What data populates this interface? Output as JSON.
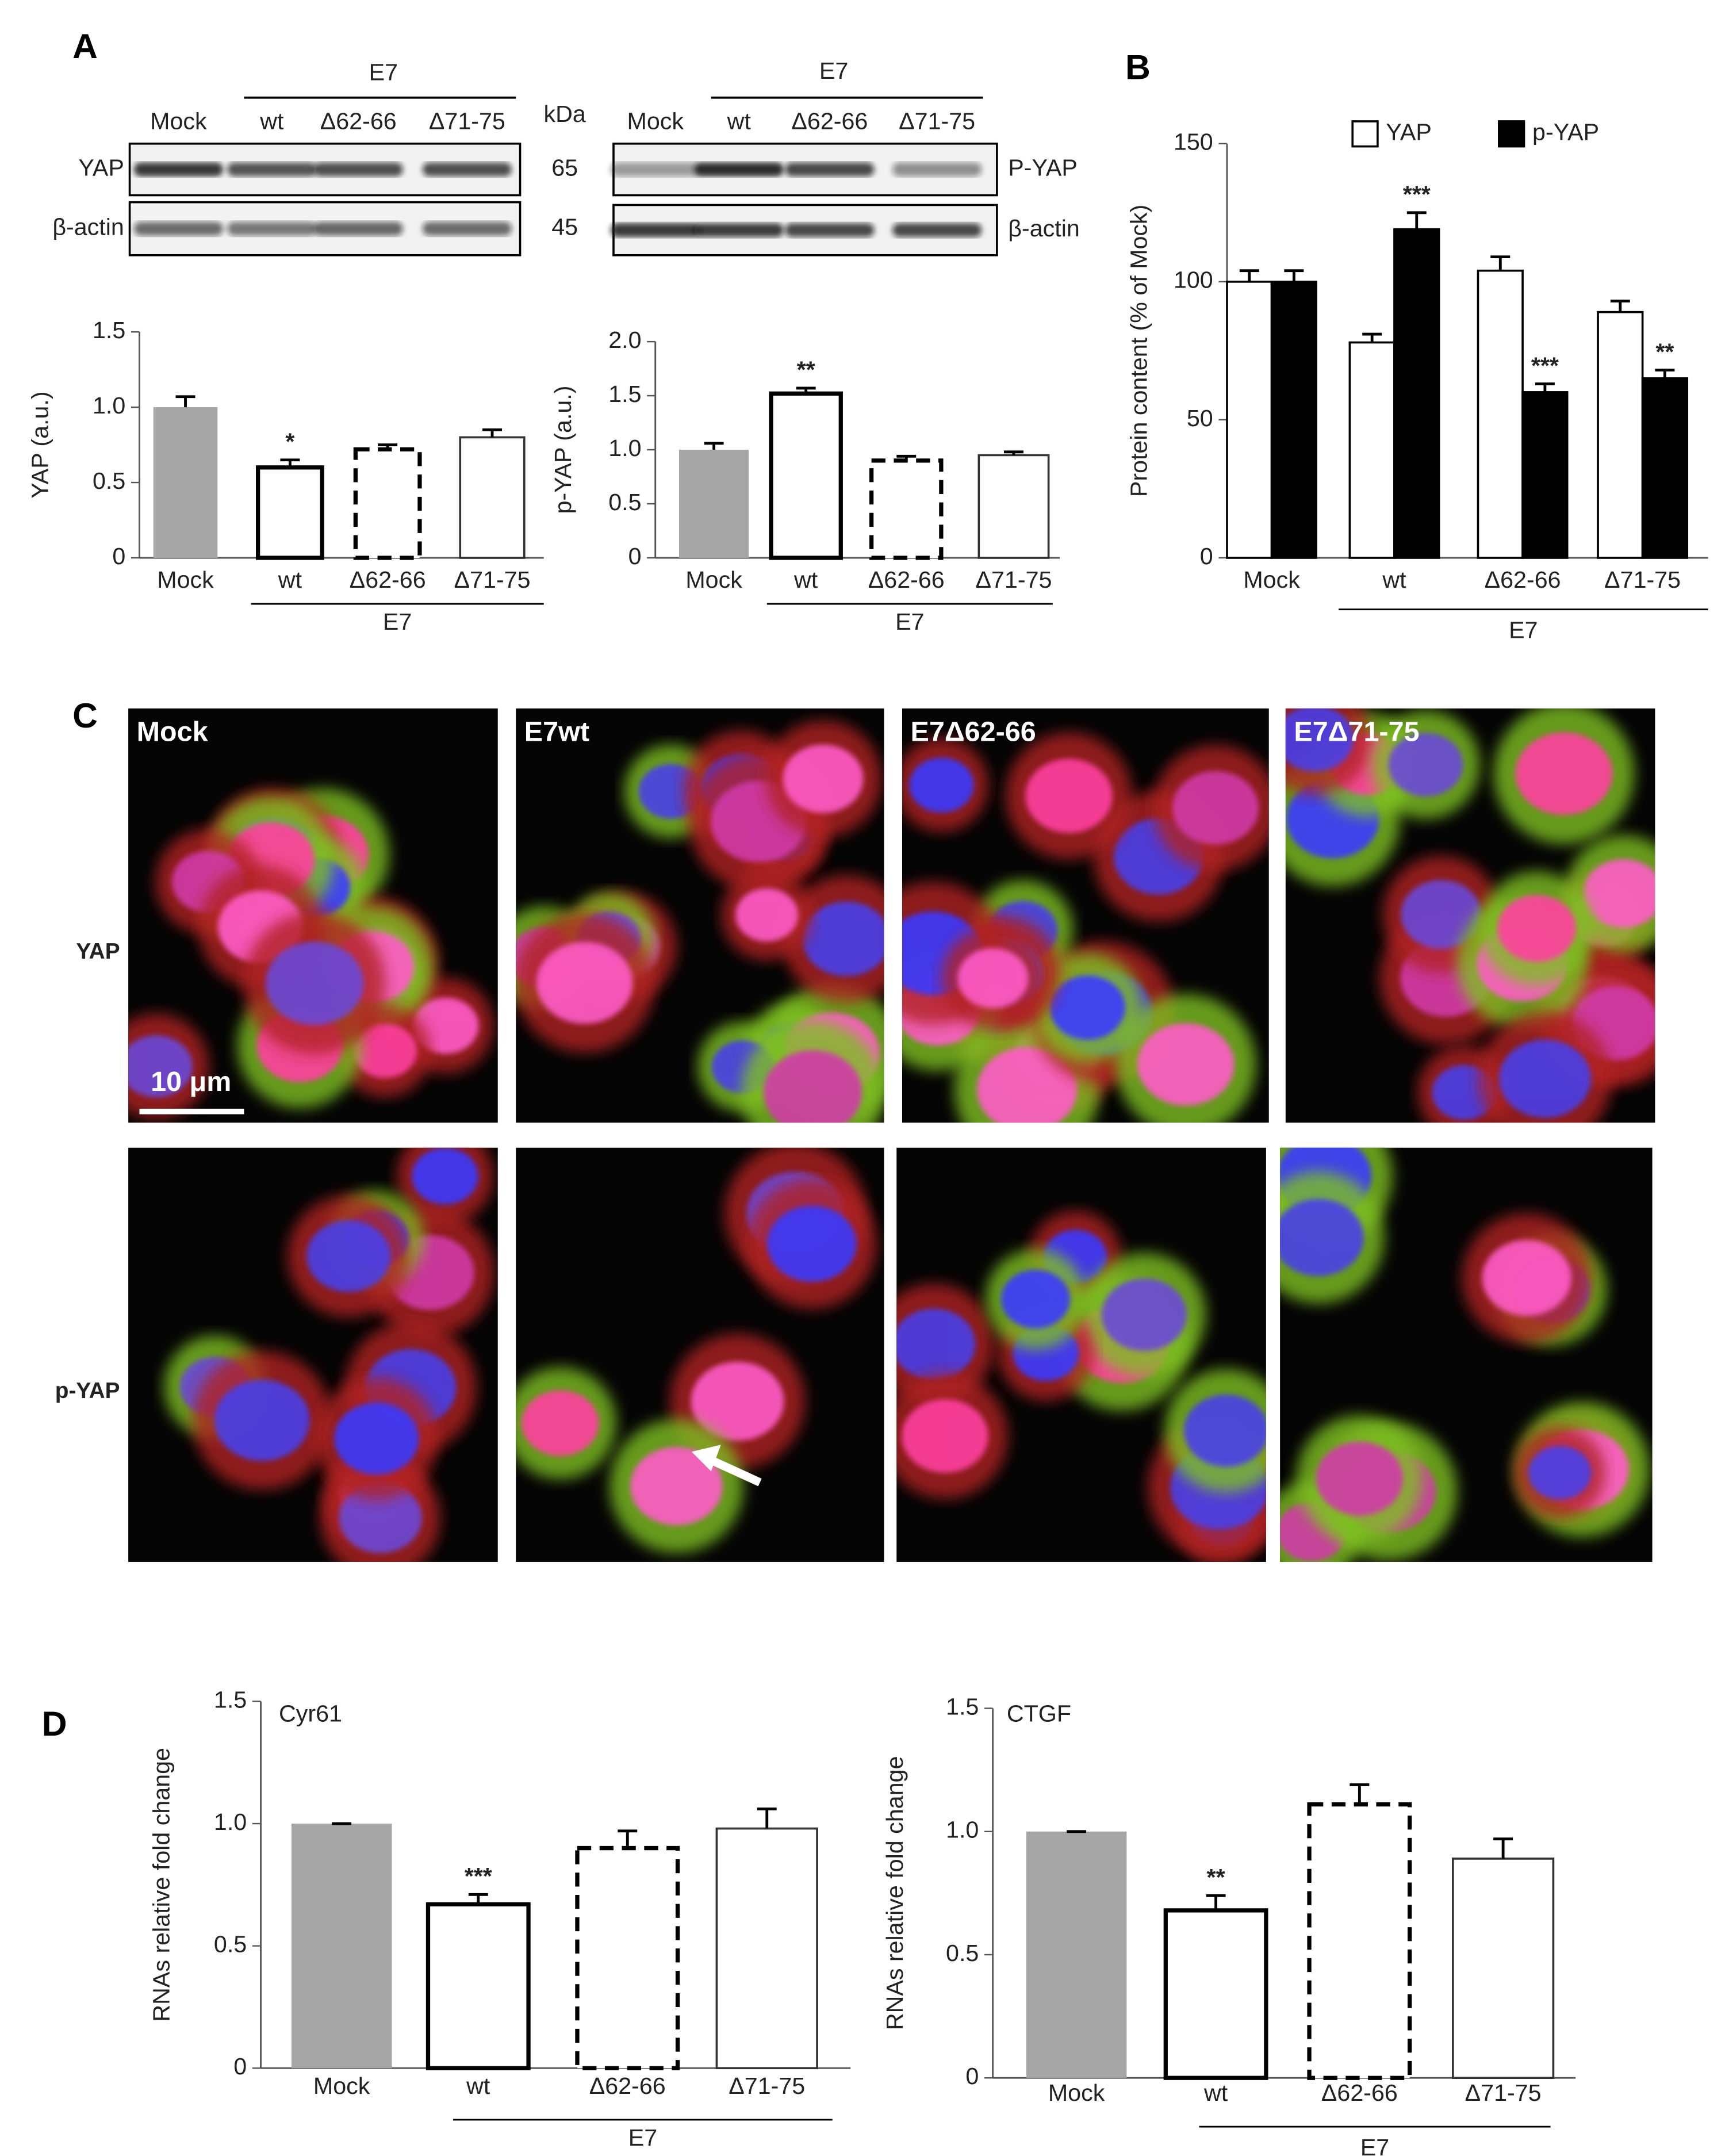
{
  "panel_labels": [
    "A",
    "B",
    "C",
    "D"
  ],
  "blots": [
    {
      "group": "E7",
      "lanes": [
        "Mock",
        "wt",
        "Δ62-66",
        "Δ71-75"
      ],
      "kda_header": "kDa",
      "rows": [
        {
          "label": "YAP",
          "kda": "65"
        },
        {
          "label": "β-actin",
          "kda": "45"
        }
      ]
    },
    {
      "group": "E7",
      "lanes": [
        "Mock",
        "wt",
        "Δ62-66",
        "Δ71-75"
      ],
      "rows": [
        {
          "label": "P-YAP"
        },
        {
          "label": "β-actin"
        }
      ]
    }
  ],
  "microscopy": {
    "columns": [
      "Mock",
      "E7wt",
      "E7Δ62-66",
      "E7Δ71-75"
    ],
    "rows": [
      "YAP",
      "p-YAP"
    ],
    "scale_bar": "10 μm"
  },
  "chart_data": [
    {
      "type": "bar",
      "y_label": "YAP (a.u.)",
      "categories": [
        "Mock",
        "wt",
        "Δ62-66",
        "Δ71-75"
      ],
      "values": [
        1.0,
        0.6,
        0.72,
        0.8
      ],
      "errors": [
        0.07,
        0.05,
        0.03,
        0.05
      ],
      "bar_styles": [
        "gray",
        "bold",
        "dashed",
        "thin"
      ],
      "significance": [
        null,
        "*",
        null,
        null
      ],
      "group_label": "E7",
      "ylim": [
        0,
        1.5
      ],
      "yticks": [
        0,
        0.5,
        {
          "value": 1,
          "label": "1.0"
        },
        1.5
      ]
    },
    {
      "type": "bar",
      "y_label": "p-YAP (a.u.)",
      "categories": [
        "Mock",
        "wt",
        "Δ62-66",
        "Δ71-75"
      ],
      "values": [
        1.0,
        1.52,
        0.9,
        0.95
      ],
      "errors": [
        0.06,
        0.05,
        0.04,
        0.03
      ],
      "bar_styles": [
        "gray",
        "bold",
        "dashed",
        "thin"
      ],
      "significance": [
        null,
        "**",
        null,
        null
      ],
      "group_label": "E7",
      "ylim": [
        0,
        2
      ],
      "yticks": [
        0,
        0.5,
        {
          "value": 1,
          "label": "1.0"
        },
        1.5,
        {
          "value": 2,
          "label": "2.0"
        }
      ]
    },
    {
      "type": "grouped_bar",
      "y_label": "Protein content (% of Mock)",
      "categories": [
        "Mock",
        "wt",
        "Δ62-66",
        "Δ71-75"
      ],
      "series": [
        {
          "name": "YAP",
          "color": "#ffffff",
          "values": [
            100,
            78,
            104,
            89
          ],
          "errors": [
            4,
            3,
            5,
            4
          ],
          "significance": [
            null,
            null,
            null,
            null
          ]
        },
        {
          "name": "p-YAP",
          "color": "#000000",
          "values": [
            100,
            119,
            60,
            65
          ],
          "errors": [
            4,
            6,
            3,
            3
          ],
          "significance": [
            null,
            "***",
            "***",
            "**"
          ]
        }
      ],
      "legend": "top",
      "group_label": "E7",
      "ylim": [
        0,
        150
      ],
      "yticks": [
        0,
        50,
        100,
        150
      ]
    },
    {
      "type": "bar",
      "title": "Cyr61",
      "y_label": "RNAs relative fold change",
      "categories": [
        "Mock",
        "wt",
        "Δ62-66",
        "Δ71-75"
      ],
      "values": [
        1.0,
        0.67,
        0.9,
        0.98
      ],
      "errors": [
        0,
        0.04,
        0.07,
        0.08
      ],
      "bar_styles": [
        "gray",
        "bold",
        "dashed",
        "thin"
      ],
      "significance": [
        null,
        "***",
        null,
        null
      ],
      "group_label": "E7",
      "ylim": [
        0,
        1.5
      ],
      "yticks": [
        0,
        0.5,
        {
          "value": 1,
          "label": "1.0"
        },
        1.5
      ]
    },
    {
      "type": "bar",
      "title": "CTGF",
      "y_label": "RNAs relative fold change",
      "categories": [
        "Mock",
        "wt",
        "Δ62-66",
        "Δ71-75"
      ],
      "values": [
        1.0,
        0.68,
        1.11,
        0.89
      ],
      "errors": [
        0,
        0.06,
        0.08,
        0.08
      ],
      "bar_styles": [
        "gray",
        "bold",
        "dashed",
        "thin"
      ],
      "significance": [
        null,
        "**",
        null,
        null
      ],
      "group_label": "E7",
      "ylim": [
        0,
        1.5
      ],
      "yticks": [
        0,
        0.5,
        {
          "value": 1,
          "label": "1.0"
        },
        1.5
      ]
    }
  ]
}
